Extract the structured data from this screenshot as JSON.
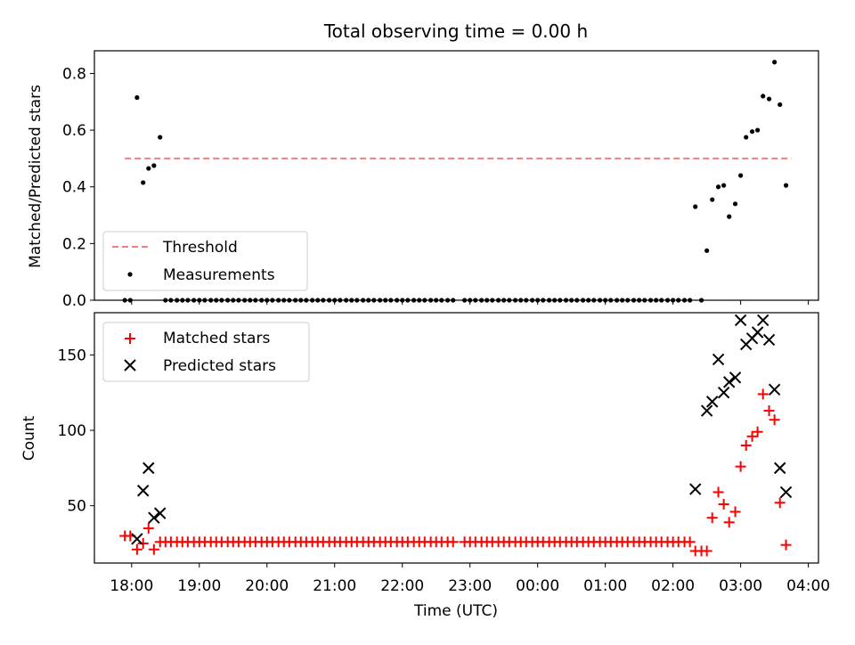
{
  "title": "Total observing time = 0.00 h",
  "chart_data": [
    {
      "type": "scatter",
      "ylabel": "Matched/Predicted stars",
      "ylim": [
        0,
        0.88
      ],
      "yticks": [
        "0.0",
        "0.2",
        "0.4",
        "0.6",
        "0.8"
      ],
      "threshold": {
        "name": "Threshold",
        "value": 0.5,
        "color": "#f08080",
        "x_start": -0.1,
        "x_end": 9.75
      },
      "legend": {
        "placement": "lower-left",
        "entries": [
          "Threshold",
          "Measurements"
        ]
      },
      "series": [
        {
          "name": "Measurements",
          "color": "#000000",
          "marker": "dot",
          "points": [
            [
              -0.1,
              0.0
            ],
            [
              -0.02,
              0.0
            ],
            [
              0.08,
              0.715
            ],
            [
              0.17,
              0.415
            ],
            [
              0.25,
              0.465
            ],
            [
              0.33,
              0.475
            ],
            [
              0.42,
              0.575
            ],
            [
              0.5,
              0.0
            ],
            [
              0.58,
              0.0
            ],
            [
              0.67,
              0.0
            ],
            [
              0.75,
              0.0
            ],
            [
              0.83,
              0.0
            ],
            [
              0.92,
              0.0
            ],
            [
              1.0,
              0.0
            ],
            [
              1.08,
              0.0
            ],
            [
              1.17,
              0.0
            ],
            [
              1.25,
              0.0
            ],
            [
              1.33,
              0.0
            ],
            [
              1.42,
              0.0
            ],
            [
              1.5,
              0.0
            ],
            [
              1.58,
              0.0
            ],
            [
              1.67,
              0.0
            ],
            [
              1.75,
              0.0
            ],
            [
              1.83,
              0.0
            ],
            [
              1.92,
              0.0
            ],
            [
              2.0,
              0.0
            ],
            [
              2.08,
              0.0
            ],
            [
              2.17,
              0.0
            ],
            [
              2.25,
              0.0
            ],
            [
              2.33,
              0.0
            ],
            [
              2.42,
              0.0
            ],
            [
              2.5,
              0.0
            ],
            [
              2.58,
              0.0
            ],
            [
              2.67,
              0.0
            ],
            [
              2.75,
              0.0
            ],
            [
              2.83,
              0.0
            ],
            [
              2.92,
              0.0
            ],
            [
              3.0,
              0.0
            ],
            [
              3.08,
              0.0
            ],
            [
              3.17,
              0.0
            ],
            [
              3.25,
              0.0
            ],
            [
              3.33,
              0.0
            ],
            [
              3.42,
              0.0
            ],
            [
              3.5,
              0.0
            ],
            [
              3.58,
              0.0
            ],
            [
              3.67,
              0.0
            ],
            [
              3.75,
              0.0
            ],
            [
              3.83,
              0.0
            ],
            [
              3.92,
              0.0
            ],
            [
              4.0,
              0.0
            ],
            [
              4.08,
              0.0
            ],
            [
              4.17,
              0.0
            ],
            [
              4.25,
              0.0
            ],
            [
              4.33,
              0.0
            ],
            [
              4.42,
              0.0
            ],
            [
              4.5,
              0.0
            ],
            [
              4.58,
              0.0
            ],
            [
              4.67,
              0.0
            ],
            [
              4.75,
              0.0
            ],
            [
              4.92,
              0.0
            ],
            [
              5.0,
              0.0
            ],
            [
              5.08,
              0.0
            ],
            [
              5.17,
              0.0
            ],
            [
              5.25,
              0.0
            ],
            [
              5.33,
              0.0
            ],
            [
              5.42,
              0.0
            ],
            [
              5.5,
              0.0
            ],
            [
              5.58,
              0.0
            ],
            [
              5.67,
              0.0
            ],
            [
              5.75,
              0.0
            ],
            [
              5.83,
              0.0
            ],
            [
              5.92,
              0.0
            ],
            [
              6.0,
              0.0
            ],
            [
              6.08,
              0.0
            ],
            [
              6.17,
              0.0
            ],
            [
              6.25,
              0.0
            ],
            [
              6.33,
              0.0
            ],
            [
              6.42,
              0.0
            ],
            [
              6.5,
              0.0
            ],
            [
              6.58,
              0.0
            ],
            [
              6.67,
              0.0
            ],
            [
              6.75,
              0.0
            ],
            [
              6.83,
              0.0
            ],
            [
              6.92,
              0.0
            ],
            [
              7.0,
              0.0
            ],
            [
              7.08,
              0.0
            ],
            [
              7.17,
              0.0
            ],
            [
              7.25,
              0.0
            ],
            [
              7.33,
              0.0
            ],
            [
              7.42,
              0.0
            ],
            [
              7.5,
              0.0
            ],
            [
              7.58,
              0.0
            ],
            [
              7.67,
              0.0
            ],
            [
              7.75,
              0.0
            ],
            [
              7.83,
              0.0
            ],
            [
              7.92,
              0.0
            ],
            [
              8.0,
              0.0
            ],
            [
              8.08,
              0.0
            ],
            [
              8.17,
              0.0
            ],
            [
              8.25,
              0.0
            ],
            [
              8.33,
              0.33
            ],
            [
              8.42,
              0.0
            ],
            [
              8.5,
              0.175
            ],
            [
              8.58,
              0.355
            ],
            [
              8.67,
              0.4
            ],
            [
              8.75,
              0.405
            ],
            [
              8.83,
              0.295
            ],
            [
              8.92,
              0.34
            ],
            [
              9.0,
              0.44
            ],
            [
              9.08,
              0.575
            ],
            [
              9.17,
              0.595
            ],
            [
              9.25,
              0.6
            ],
            [
              9.33,
              0.72
            ],
            [
              9.42,
              0.71
            ],
            [
              9.5,
              0.84
            ],
            [
              9.58,
              0.69
            ],
            [
              9.67,
              0.405
            ]
          ]
        }
      ]
    },
    {
      "type": "scatter",
      "xlabel": "Time (UTC)",
      "ylabel": "Count",
      "xlim": [
        -0.55,
        10.15
      ],
      "ylim": [
        12,
        178
      ],
      "xticks": [
        "18:00",
        "19:00",
        "20:00",
        "21:00",
        "22:00",
        "23:00",
        "00:00",
        "01:00",
        "02:00",
        "03:00",
        "04:00"
      ],
      "yticks": [
        "50",
        "100",
        "150"
      ],
      "legend": {
        "placement": "upper-left",
        "entries": [
          "Matched stars",
          "Predicted stars"
        ]
      },
      "series": [
        {
          "name": "Matched stars",
          "color": "#ff0000",
          "marker": "plus",
          "points": [
            [
              -0.1,
              30
            ],
            [
              -0.02,
              30
            ],
            [
              0.08,
              21
            ],
            [
              0.17,
              25
            ],
            [
              0.25,
              35
            ],
            [
              0.33,
              21
            ],
            [
              0.42,
              26
            ],
            [
              0.5,
              26
            ],
            [
              0.58,
              26
            ],
            [
              0.67,
              26
            ],
            [
              0.75,
              26
            ],
            [
              0.83,
              26
            ],
            [
              0.92,
              26
            ],
            [
              1.0,
              26
            ],
            [
              1.08,
              26
            ],
            [
              1.17,
              26
            ],
            [
              1.25,
              26
            ],
            [
              1.33,
              26
            ],
            [
              1.42,
              26
            ],
            [
              1.5,
              26
            ],
            [
              1.58,
              26
            ],
            [
              1.67,
              26
            ],
            [
              1.75,
              26
            ],
            [
              1.83,
              26
            ],
            [
              1.92,
              26
            ],
            [
              2.0,
              26
            ],
            [
              2.08,
              26
            ],
            [
              2.17,
              26
            ],
            [
              2.25,
              26
            ],
            [
              2.33,
              26
            ],
            [
              2.42,
              26
            ],
            [
              2.5,
              26
            ],
            [
              2.58,
              26
            ],
            [
              2.67,
              26
            ],
            [
              2.75,
              26
            ],
            [
              2.83,
              26
            ],
            [
              2.92,
              26
            ],
            [
              3.0,
              26
            ],
            [
              3.08,
              26
            ],
            [
              3.17,
              26
            ],
            [
              3.25,
              26
            ],
            [
              3.33,
              26
            ],
            [
              3.42,
              26
            ],
            [
              3.5,
              26
            ],
            [
              3.58,
              26
            ],
            [
              3.67,
              26
            ],
            [
              3.75,
              26
            ],
            [
              3.83,
              26
            ],
            [
              3.92,
              26
            ],
            [
              4.0,
              26
            ],
            [
              4.08,
              26
            ],
            [
              4.17,
              26
            ],
            [
              4.25,
              26
            ],
            [
              4.33,
              26
            ],
            [
              4.42,
              26
            ],
            [
              4.5,
              26
            ],
            [
              4.58,
              26
            ],
            [
              4.67,
              26
            ],
            [
              4.75,
              26
            ],
            [
              4.92,
              26
            ],
            [
              5.0,
              26
            ],
            [
              5.08,
              26
            ],
            [
              5.17,
              26
            ],
            [
              5.25,
              26
            ],
            [
              5.33,
              26
            ],
            [
              5.42,
              26
            ],
            [
              5.5,
              26
            ],
            [
              5.58,
              26
            ],
            [
              5.67,
              26
            ],
            [
              5.75,
              26
            ],
            [
              5.83,
              26
            ],
            [
              5.92,
              26
            ],
            [
              6.0,
              26
            ],
            [
              6.08,
              26
            ],
            [
              6.17,
              26
            ],
            [
              6.25,
              26
            ],
            [
              6.33,
              26
            ],
            [
              6.42,
              26
            ],
            [
              6.5,
              26
            ],
            [
              6.58,
              26
            ],
            [
              6.67,
              26
            ],
            [
              6.75,
              26
            ],
            [
              6.83,
              26
            ],
            [
              6.92,
              26
            ],
            [
              7.0,
              26
            ],
            [
              7.08,
              26
            ],
            [
              7.17,
              26
            ],
            [
              7.25,
              26
            ],
            [
              7.33,
              26
            ],
            [
              7.42,
              26
            ],
            [
              7.5,
              26
            ],
            [
              7.58,
              26
            ],
            [
              7.67,
              26
            ],
            [
              7.75,
              26
            ],
            [
              7.83,
              26
            ],
            [
              7.92,
              26
            ],
            [
              8.0,
              26
            ],
            [
              8.08,
              26
            ],
            [
              8.17,
              26
            ],
            [
              8.25,
              26
            ],
            [
              8.33,
              20
            ],
            [
              8.42,
              20
            ],
            [
              8.5,
              20
            ],
            [
              8.58,
              42
            ],
            [
              8.67,
              59
            ],
            [
              8.75,
              51
            ],
            [
              8.83,
              39
            ],
            [
              8.92,
              46
            ],
            [
              9.0,
              76
            ],
            [
              9.08,
              90
            ],
            [
              9.17,
              96
            ],
            [
              9.25,
              99
            ],
            [
              9.33,
              124
            ],
            [
              9.42,
              113
            ],
            [
              9.5,
              107
            ],
            [
              9.58,
              52
            ],
            [
              9.67,
              24
            ]
          ]
        },
        {
          "name": "Predicted stars",
          "color": "#000000",
          "marker": "x",
          "points": [
            [
              0.08,
              28
            ],
            [
              0.17,
              60
            ],
            [
              0.25,
              75
            ],
            [
              0.33,
              42
            ],
            [
              0.42,
              45
            ],
            [
              8.33,
              61
            ],
            [
              8.5,
              113
            ],
            [
              8.58,
              119
            ],
            [
              8.67,
              147
            ],
            [
              8.75,
              125
            ],
            [
              8.83,
              132
            ],
            [
              8.92,
              135
            ],
            [
              9.0,
              173
            ],
            [
              9.08,
              157
            ],
            [
              9.17,
              161
            ],
            [
              9.25,
              165
            ],
            [
              9.33,
              173
            ],
            [
              9.42,
              160
            ],
            [
              9.5,
              127
            ],
            [
              9.58,
              75
            ],
            [
              9.67,
              59
            ]
          ]
        }
      ]
    }
  ]
}
